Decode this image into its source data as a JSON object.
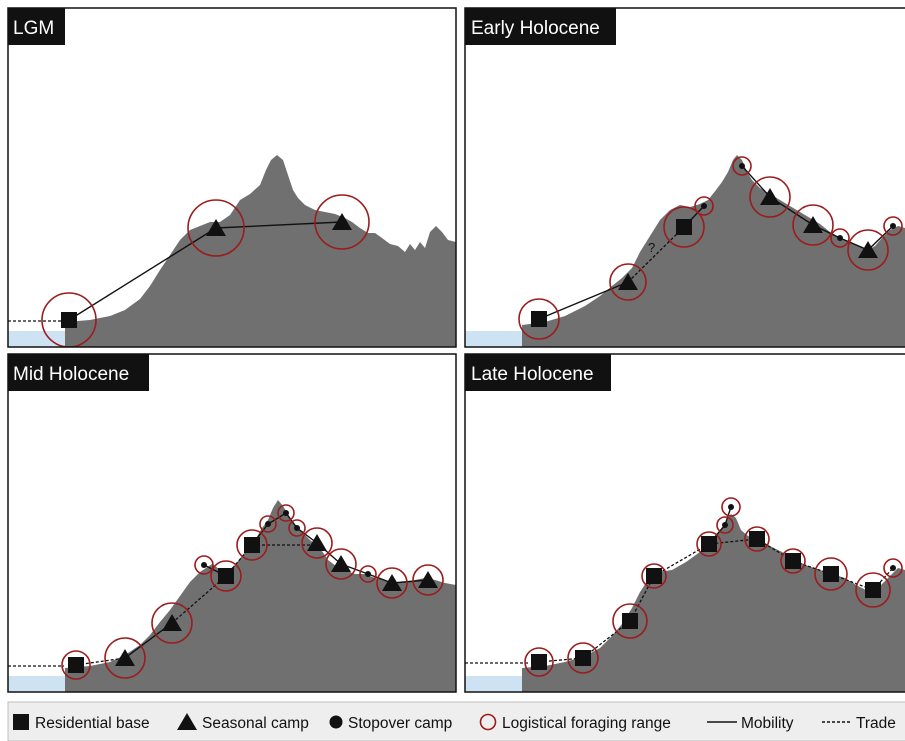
{
  "panels": [
    {
      "id": "lgm",
      "title": "LGM"
    },
    {
      "id": "early",
      "title": "Early Holocene",
      "annotation": "?"
    },
    {
      "id": "mid",
      "title": "Mid Holocene"
    },
    {
      "id": "late",
      "title": "Late Holocene"
    }
  ],
  "legend": {
    "residential": "Residential base",
    "seasonal": "Seasonal camp",
    "stopover": "Stopover camp",
    "range": "Logistical foraging range",
    "mobility": "Mobility",
    "trade": "Trade"
  },
  "colors": {
    "terrain": "#707070",
    "water": "#cde3f3",
    "range_circle": "#9b1c1c",
    "marker": "#111111",
    "title_bg": "#111111",
    "legend_bg": "#eeeeee"
  }
}
